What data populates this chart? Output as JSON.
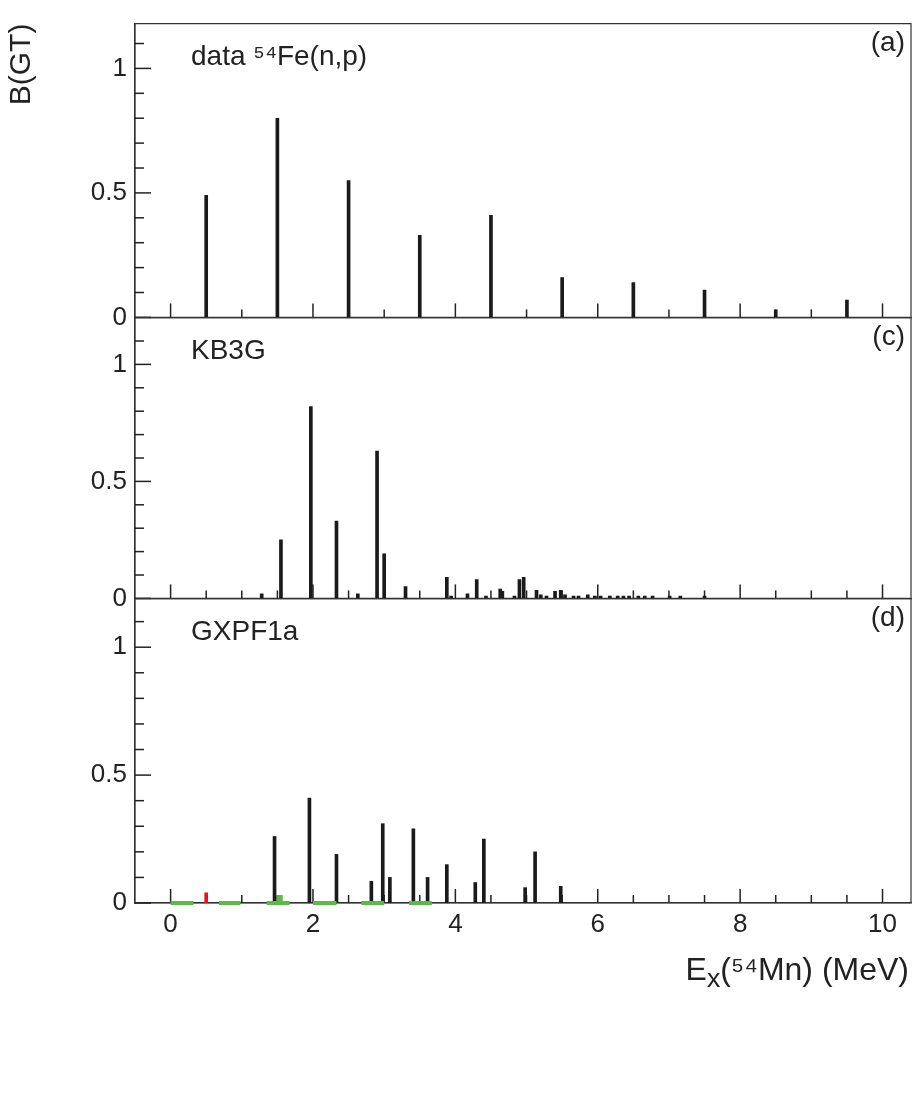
{
  "chart_data": [
    {
      "type": "bar",
      "annotations": [
        "data ⁵⁴Fe(n,p)",
        "(a)"
      ],
      "ylabel": "B(GT)",
      "color": "#1a1a1a",
      "x": [
        0.5,
        1.5,
        2.5,
        3.5,
        4.5,
        5.5,
        6.5,
        7.5,
        8.5,
        9.5
      ],
      "values": [
        0.49,
        0.8,
        0.55,
        0.33,
        0.41,
        0.16,
        0.14,
        0.11,
        0.03,
        0.07
      ],
      "xlim": [
        -0.5,
        10.4
      ],
      "xticks": [
        0,
        {
          "value": 0.5,
          "label": null
        },
        {
          "value": 1,
          "label": null
        },
        {
          "value": 1.5,
          "label": null
        },
        2,
        {
          "value": 2.5,
          "label": null
        },
        {
          "value": 3,
          "label": null
        },
        {
          "value": 3.5,
          "label": null
        },
        4,
        {
          "value": 4.5,
          "label": null
        },
        {
          "value": 5,
          "label": null
        },
        {
          "value": 5.5,
          "label": null
        },
        6,
        {
          "value": 6.5,
          "label": null
        },
        {
          "value": 7,
          "label": null
        },
        {
          "value": 7.5,
          "label": null
        },
        8,
        {
          "value": 8.5,
          "label": null
        },
        {
          "value": 9,
          "label": null
        },
        {
          "value": 9.5,
          "label": null
        },
        10
      ],
      "ylim": [
        0,
        1.18
      ],
      "yticks": [
        0,
        {
          "value": 0.1,
          "label": null
        },
        {
          "value": 0.2,
          "label": null
        },
        {
          "value": 0.3,
          "label": null
        },
        {
          "value": 0.4,
          "label": null
        },
        0.5,
        {
          "value": 0.6,
          "label": null
        },
        {
          "value": 0.7,
          "label": null
        },
        {
          "value": 0.8,
          "label": null
        },
        {
          "value": 0.9,
          "label": null
        },
        1,
        {
          "value": 1.1,
          "label": null
        }
      ],
      "tick_labels": "y"
    },
    {
      "type": "bar",
      "annotations": [
        "KB3G",
        "(c)"
      ],
      "color": "#1a1a1a",
      "x": [
        1.28,
        1.55,
        1.97,
        2.33,
        2.63,
        2.9,
        3.0,
        3.3,
        3.88,
        3.94,
        4.17,
        4.3,
        4.43,
        4.63,
        4.66,
        4.83,
        4.9,
        4.96,
        5.14,
        5.2,
        5.28,
        5.4,
        5.48,
        5.54,
        5.66,
        5.73,
        5.86,
        5.96,
        6.04,
        6.17,
        6.28,
        6.36,
        6.44,
        6.57,
        6.66,
        6.77,
        7.01,
        7.16,
        7.5
      ],
      "values": [
        0.02,
        0.25,
        0.82,
        0.33,
        0.02,
        0.63,
        0.19,
        0.05,
        0.09,
        0.01,
        0.02,
        0.08,
        0.01,
        0.04,
        0.03,
        0.01,
        0.08,
        0.09,
        0.035,
        0.015,
        0.01,
        0.03,
        0.035,
        0.015,
        0.01,
        0.01,
        0.015,
        0.01,
        0.01,
        0.01,
        0.01,
        0.01,
        0.01,
        0.01,
        0.01,
        0.01,
        0.01,
        0.01,
        0.01
      ],
      "xlim": [
        -0.5,
        10.4
      ],
      "xticks": [
        0,
        {
          "value": 0.5,
          "label": null
        },
        {
          "value": 1,
          "label": null
        },
        {
          "value": 1.5,
          "label": null
        },
        2,
        {
          "value": 2.5,
          "label": null
        },
        {
          "value": 3,
          "label": null
        },
        {
          "value": 3.5,
          "label": null
        },
        4,
        {
          "value": 4.5,
          "label": null
        },
        {
          "value": 5,
          "label": null
        },
        {
          "value": 5.5,
          "label": null
        },
        6,
        {
          "value": 6.5,
          "label": null
        },
        {
          "value": 7,
          "label": null
        },
        {
          "value": 7.5,
          "label": null
        },
        8,
        {
          "value": 8.5,
          "label": null
        },
        {
          "value": 9,
          "label": null
        },
        {
          "value": 9.5,
          "label": null
        },
        10
      ],
      "ylim": [
        0,
        1.2
      ],
      "yticks": [
        0,
        {
          "value": 0.1,
          "label": null
        },
        {
          "value": 0.2,
          "label": null
        },
        {
          "value": 0.3,
          "label": null
        },
        {
          "value": 0.4,
          "label": null
        },
        0.5,
        {
          "value": 0.6,
          "label": null
        },
        {
          "value": 0.7,
          "label": null
        },
        {
          "value": 0.8,
          "label": null
        },
        {
          "value": 0.9,
          "label": null
        },
        1,
        {
          "value": 1.1,
          "label": null
        }
      ],
      "tick_labels": "y"
    },
    {
      "type": "bar",
      "annotations": [
        "GXPF1a",
        "(d)"
      ],
      "xlabel": "E$_{x}$(⁵⁴Mn) (MeV)",
      "series": [
        {
          "color": "#1a1a1a",
          "x": [
            1.46,
            1.95,
            2.33,
            2.82,
            2.98,
            3.08,
            3.41,
            3.61,
            3.88,
            4.28,
            4.4,
            4.98,
            5.12,
            5.48
          ],
          "values": [
            0.26,
            0.41,
            0.19,
            0.085,
            0.31,
            0.1,
            0.29,
            0.1,
            0.15,
            0.08,
            0.25,
            0.06,
            0.2,
            0.065
          ]
        },
        {
          "type": "line",
          "color": "#5cb848",
          "x": [
            0,
            0.32
          ],
          "values": [
            0,
            0
          ]
        },
        {
          "type": "line",
          "color": "#5cb848",
          "x": [
            0.68,
            0.98
          ],
          "values": [
            0,
            0
          ]
        },
        {
          "type": "line",
          "color": "#5cb848",
          "x": [
            1.35,
            1.67
          ],
          "values": [
            0,
            0
          ]
        },
        {
          "type": "line",
          "color": "#5cb848",
          "x": [
            2.0,
            2.33
          ],
          "values": [
            0,
            0
          ]
        },
        {
          "type": "line",
          "color": "#5cb848",
          "x": [
            2.68,
            3.0
          ],
          "values": [
            0,
            0
          ]
        },
        {
          "type": "line",
          "color": "#5cb848",
          "x": [
            3.35,
            3.67
          ],
          "values": [
            0,
            0
          ]
        },
        {
          "color": "#5cb848",
          "x": [
            1.51,
            1.55
          ],
          "values": [
            0.03,
            0.03
          ]
        },
        {
          "color": "#e8141c",
          "x": [
            0.5
          ],
          "values": [
            0.04
          ]
        }
      ],
      "xlim": [
        -0.5,
        10.4
      ],
      "xticks": [
        0,
        {
          "value": 0.5,
          "label": null
        },
        {
          "value": 1,
          "label": null
        },
        {
          "value": 1.5,
          "label": null
        },
        2,
        {
          "value": 2.5,
          "label": null
        },
        {
          "value": 3,
          "label": null
        },
        {
          "value": 3.5,
          "label": null
        },
        4,
        {
          "value": 4.5,
          "label": null
        },
        {
          "value": 5,
          "label": null
        },
        {
          "value": 5.5,
          "label": null
        },
        6,
        {
          "value": 6.5,
          "label": null
        },
        {
          "value": 7,
          "label": null
        },
        {
          "value": 7.5,
          "label": null
        },
        8,
        {
          "value": 8.5,
          "label": null
        },
        {
          "value": 9,
          "label": null
        },
        {
          "value": 9.5,
          "label": null
        },
        10
      ],
      "ylim": [
        0,
        1.19
      ],
      "yticks": [
        0,
        {
          "value": 0.1,
          "label": null
        },
        {
          "value": 0.2,
          "label": null
        },
        {
          "value": 0.3,
          "label": null
        },
        {
          "value": 0.4,
          "label": null
        },
        0.5,
        {
          "value": 0.6,
          "label": null
        },
        {
          "value": 0.7,
          "label": null
        },
        {
          "value": 0.8,
          "label": null
        },
        {
          "value": 0.9,
          "label": null
        },
        1,
        {
          "value": 1.1,
          "label": null
        }
      ]
    }
  ]
}
